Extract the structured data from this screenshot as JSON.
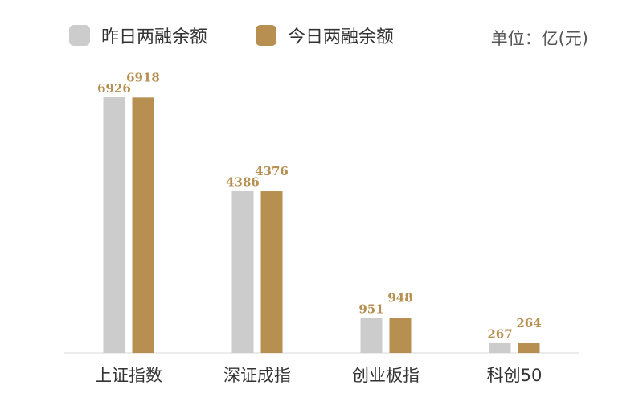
{
  "legend": [
    {
      "label": "昨日两融余额",
      "color": "#cccccc"
    },
    {
      "label": "今日两融余额",
      "color": "#b68f51"
    }
  ],
  "unit_label": "单位：亿(元)",
  "chart_data": {
    "type": "bar",
    "categories": [
      "上证指数",
      "深证成指",
      "创业板指",
      "科创50"
    ],
    "series": [
      {
        "name": "昨日两融余额",
        "values": [
          6926,
          4386,
          951,
          267
        ],
        "color": "#cccccc"
      },
      {
        "name": "今日两融余额",
        "values": [
          6918,
          4376,
          948,
          264
        ],
        "color": "#b68f51"
      }
    ],
    "value_label_color": "#b68f51",
    "ylim": [
      0,
      7600
    ],
    "grid": false,
    "legend_position": "top-left"
  }
}
